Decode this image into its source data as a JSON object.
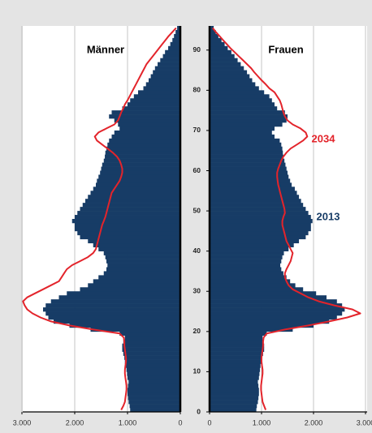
{
  "chart_data": {
    "type": "population_pyramid",
    "panels": [
      "Männer",
      "Frauen"
    ],
    "ages": [
      0,
      1,
      2,
      3,
      4,
      5,
      6,
      7,
      8,
      9,
      10,
      11,
      12,
      13,
      14,
      15,
      16,
      17,
      18,
      19,
      20,
      21,
      22,
      23,
      24,
      25,
      26,
      27,
      28,
      29,
      30,
      31,
      32,
      33,
      34,
      35,
      36,
      37,
      38,
      39,
      40,
      41,
      42,
      43,
      44,
      45,
      46,
      47,
      48,
      49,
      50,
      51,
      52,
      53,
      54,
      55,
      56,
      57,
      58,
      59,
      60,
      61,
      62,
      63,
      64,
      65,
      66,
      67,
      68,
      69,
      70,
      71,
      72,
      73,
      74,
      75,
      76,
      77,
      78,
      79,
      80,
      81,
      82,
      83,
      84,
      85,
      86,
      87,
      88,
      89,
      90,
      91,
      92,
      93,
      94,
      95
    ],
    "ylim": [
      0,
      96
    ],
    "yticks": [
      0,
      10,
      20,
      30,
      40,
      50,
      60,
      70,
      80,
      90
    ],
    "xlim": [
      0,
      3000
    ],
    "xticks": [
      0,
      {
        "value": 1000,
        "label": "1.000"
      },
      {
        "value": 2000,
        "label": "2.000"
      },
      {
        "value": 3000,
        "label": "3.000"
      }
    ],
    "grid": true,
    "series": [
      {
        "name": "2013",
        "color": "#173c66",
        "style": "bar",
        "men": [
          950,
          960,
          980,
          990,
          1000,
          1000,
          990,
          980,
          1000,
          1010,
          1020,
          1030,
          1050,
          1060,
          1080,
          1100,
          1100,
          1080,
          1050,
          1150,
          1700,
          2100,
          2400,
          2500,
          2550,
          2600,
          2550,
          2450,
          2300,
          2150,
          1900,
          1750,
          1650,
          1550,
          1450,
          1400,
          1380,
          1400,
          1420,
          1450,
          1550,
          1650,
          1750,
          1900,
          1950,
          2000,
          2000,
          2050,
          2000,
          1950,
          1900,
          1850,
          1800,
          1750,
          1700,
          1650,
          1600,
          1580,
          1550,
          1520,
          1500,
          1480,
          1450,
          1430,
          1420,
          1400,
          1380,
          1350,
          1300,
          1250,
          1150,
          1180,
          1250,
          1350,
          1300,
          1100,
          1000,
          950,
          880,
          800,
          700,
          650,
          600,
          560,
          520,
          480,
          430,
          380,
          330,
          290,
          230,
          190,
          150,
          120,
          90,
          60
        ],
        "women": [
          900,
          910,
          930,
          940,
          950,
          950,
          940,
          930,
          950,
          960,
          970,
          980,
          1000,
          1010,
          1030,
          1050,
          1050,
          1040,
          1020,
          1100,
          1600,
          2000,
          2300,
          2450,
          2550,
          2600,
          2550,
          2450,
          2250,
          2050,
          1800,
          1650,
          1550,
          1480,
          1420,
          1380,
          1360,
          1380,
          1400,
          1430,
          1520,
          1620,
          1720,
          1850,
          1900,
          1950,
          1950,
          1980,
          1950,
          1900,
          1850,
          1800,
          1760,
          1720,
          1680,
          1640,
          1580,
          1550,
          1520,
          1500,
          1480,
          1460,
          1440,
          1420,
          1410,
          1400,
          1380,
          1350,
          1250,
          1200,
          1250,
          1400,
          1480,
          1500,
          1450,
          1300,
          1250,
          1200,
          1150,
          1050,
          950,
          880,
          820,
          770,
          720,
          660,
          600,
          540,
          480,
          420,
          350,
          290,
          230,
          170,
          120,
          80
        ]
      },
      {
        "name": "2034",
        "color": "#e3242b",
        "style": "line",
        "men": [
          1120,
          1080,
          1050,
          1040,
          1030,
          1020,
          1020,
          1030,
          1040,
          1050,
          1050,
          1040,
          1030,
          1030,
          1040,
          1050,
          1060,
          1060,
          1070,
          1150,
          1650,
          2100,
          2450,
          2650,
          2800,
          2900,
          2950,
          2980,
          2900,
          2750,
          2600,
          2450,
          2300,
          2250,
          2200,
          2150,
          2050,
          1900,
          1750,
          1650,
          1600,
          1580,
          1560,
          1540,
          1520,
          1500,
          1480,
          1450,
          1420,
          1400,
          1380,
          1360,
          1340,
          1320,
          1300,
          1250,
          1200,
          1150,
          1120,
          1100,
          1100,
          1120,
          1150,
          1200,
          1280,
          1380,
          1480,
          1580,
          1620,
          1550,
          1400,
          1250,
          1180,
          1150,
          1120,
          1080,
          1050,
          1000,
          960,
          920,
          880,
          840,
          800,
          760,
          720,
          680,
          640,
          580,
          520,
          460,
          400,
          340,
          280,
          220,
          150,
          80
        ],
        "women": [
          1080,
          1050,
          1020,
          1010,
          1000,
          990,
          990,
          1000,
          1010,
          1020,
          1020,
          1010,
          1000,
          1000,
          1010,
          1020,
          1030,
          1030,
          1040,
          1100,
          1450,
          1900,
          2300,
          2650,
          2900,
          2750,
          2400,
          2100,
          1900,
          1750,
          1600,
          1520,
          1480,
          1450,
          1450,
          1480,
          1520,
          1560,
          1580,
          1600,
          1560,
          1520,
          1480,
          1460,
          1440,
          1420,
          1400,
          1400,
          1420,
          1450,
          1440,
          1420,
          1400,
          1380,
          1360,
          1340,
          1320,
          1310,
          1300,
          1300,
          1320,
          1350,
          1380,
          1420,
          1480,
          1560,
          1680,
          1800,
          1880,
          1850,
          1750,
          1600,
          1500,
          1450,
          1420,
          1400,
          1380,
          1350,
          1300,
          1250,
          1150,
          1080,
          1000,
          930,
          860,
          800,
          720,
          640,
          560,
          480,
          400,
          330,
          260,
          190,
          120,
          60
        ]
      }
    ]
  }
}
